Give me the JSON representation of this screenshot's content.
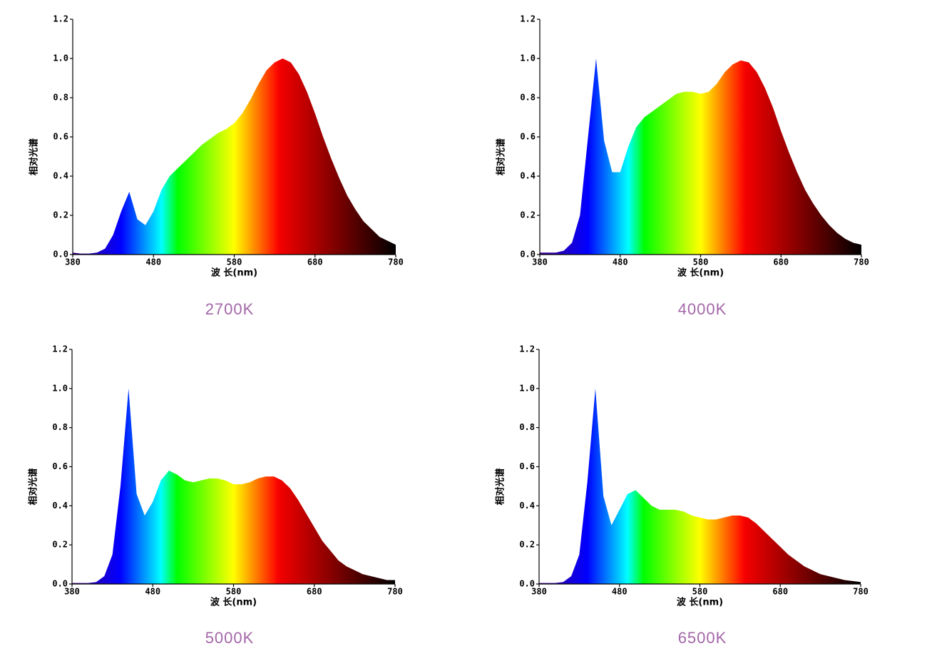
{
  "chart_data": [
    {
      "type": "area",
      "title": "2700K",
      "xlabel": "波 长(nm)",
      "ylabel": "相对光谱",
      "x": [
        380,
        390,
        400,
        410,
        420,
        430,
        440,
        450,
        460,
        470,
        480,
        490,
        500,
        510,
        520,
        530,
        540,
        550,
        560,
        570,
        580,
        590,
        600,
        610,
        620,
        630,
        640,
        650,
        660,
        670,
        680,
        690,
        700,
        710,
        720,
        730,
        740,
        750,
        760,
        770,
        780
      ],
      "values": [
        0.01,
        0.005,
        0.005,
        0.01,
        0.03,
        0.1,
        0.22,
        0.32,
        0.18,
        0.15,
        0.22,
        0.33,
        0.4,
        0.44,
        0.48,
        0.52,
        0.56,
        0.59,
        0.62,
        0.64,
        0.67,
        0.72,
        0.79,
        0.87,
        0.94,
        0.98,
        1.0,
        0.98,
        0.92,
        0.83,
        0.72,
        0.6,
        0.49,
        0.39,
        0.3,
        0.23,
        0.17,
        0.13,
        0.09,
        0.07,
        0.05
      ],
      "xlim": [
        380,
        780
      ],
      "xticks": [
        380,
        480,
        580,
        680,
        780
      ],
      "ylim": [
        0,
        1.2
      ],
      "yticks": [
        {
          "value": 0,
          "label": "0.0"
        },
        0.2,
        0.4,
        0.6,
        0.8,
        {
          "value": 1,
          "label": "1.0"
        },
        1.2
      ]
    },
    {
      "type": "area",
      "title": "4000K",
      "xlabel": "波 长(nm)",
      "ylabel": "相对光谱",
      "x": [
        380,
        390,
        400,
        410,
        420,
        430,
        440,
        450,
        460,
        470,
        480,
        490,
        500,
        510,
        520,
        530,
        540,
        550,
        560,
        570,
        580,
        590,
        600,
        610,
        620,
        630,
        640,
        650,
        660,
        670,
        680,
        690,
        700,
        710,
        720,
        730,
        740,
        750,
        760,
        770,
        780
      ],
      "values": [
        0.01,
        0.01,
        0.01,
        0.02,
        0.06,
        0.2,
        0.6,
        1.0,
        0.58,
        0.42,
        0.42,
        0.55,
        0.65,
        0.7,
        0.73,
        0.76,
        0.79,
        0.82,
        0.83,
        0.83,
        0.82,
        0.83,
        0.87,
        0.93,
        0.97,
        0.99,
        0.98,
        0.93,
        0.85,
        0.75,
        0.63,
        0.52,
        0.42,
        0.33,
        0.26,
        0.2,
        0.15,
        0.11,
        0.08,
        0.06,
        0.05
      ],
      "xlim": [
        380,
        780
      ],
      "xticks": [
        380,
        480,
        580,
        680,
        780
      ],
      "ylim": [
        0,
        1.2
      ],
      "yticks": [
        {
          "value": 0,
          "label": "0.0"
        },
        0.2,
        0.4,
        0.6,
        0.8,
        {
          "value": 1,
          "label": "1.0"
        },
        1.2
      ]
    },
    {
      "type": "area",
      "title": "5000K",
      "xlabel": "波 长(nm)",
      "ylabel": "相对光谱",
      "x": [
        380,
        390,
        400,
        410,
        420,
        430,
        440,
        450,
        460,
        470,
        480,
        490,
        500,
        510,
        520,
        530,
        540,
        550,
        560,
        570,
        580,
        590,
        600,
        610,
        620,
        630,
        640,
        650,
        660,
        670,
        680,
        690,
        700,
        710,
        720,
        730,
        740,
        750,
        760,
        770,
        780
      ],
      "values": [
        0.005,
        0.005,
        0.005,
        0.01,
        0.04,
        0.15,
        0.5,
        1.0,
        0.46,
        0.35,
        0.42,
        0.53,
        0.58,
        0.56,
        0.53,
        0.52,
        0.53,
        0.54,
        0.54,
        0.53,
        0.51,
        0.51,
        0.52,
        0.54,
        0.55,
        0.55,
        0.53,
        0.49,
        0.43,
        0.36,
        0.29,
        0.22,
        0.17,
        0.12,
        0.09,
        0.07,
        0.05,
        0.04,
        0.03,
        0.02,
        0.02
      ],
      "xlim": [
        380,
        780
      ],
      "xticks": [
        380,
        480,
        580,
        680,
        780
      ],
      "ylim": [
        0,
        1.2
      ],
      "yticks": [
        {
          "value": 0,
          "label": "0.0"
        },
        0.2,
        0.4,
        0.6,
        0.8,
        {
          "value": 1,
          "label": "1.0"
        },
        1.2
      ]
    },
    {
      "type": "area",
      "title": "6500K",
      "xlabel": "波 长(nm)",
      "ylabel": "相对光谱",
      "x": [
        380,
        390,
        400,
        410,
        420,
        430,
        440,
        450,
        460,
        470,
        480,
        490,
        500,
        510,
        520,
        530,
        540,
        550,
        560,
        570,
        580,
        590,
        600,
        610,
        620,
        630,
        640,
        650,
        660,
        670,
        680,
        690,
        700,
        710,
        720,
        730,
        740,
        750,
        760,
        770,
        780
      ],
      "values": [
        0.005,
        0.005,
        0.005,
        0.01,
        0.04,
        0.15,
        0.52,
        1.0,
        0.45,
        0.3,
        0.38,
        0.46,
        0.48,
        0.44,
        0.4,
        0.38,
        0.38,
        0.38,
        0.37,
        0.35,
        0.34,
        0.33,
        0.33,
        0.34,
        0.35,
        0.35,
        0.34,
        0.31,
        0.27,
        0.23,
        0.19,
        0.15,
        0.12,
        0.09,
        0.07,
        0.05,
        0.04,
        0.03,
        0.02,
        0.015,
        0.01
      ],
      "xlim": [
        380,
        780
      ],
      "xticks": [
        380,
        480,
        580,
        680,
        780
      ],
      "ylim": [
        0,
        1.2
      ],
      "yticks": [
        {
          "value": 0,
          "label": "0.0"
        },
        0.2,
        0.4,
        0.6,
        0.8,
        {
          "value": 1,
          "label": "1.0"
        },
        1.2
      ]
    }
  ]
}
